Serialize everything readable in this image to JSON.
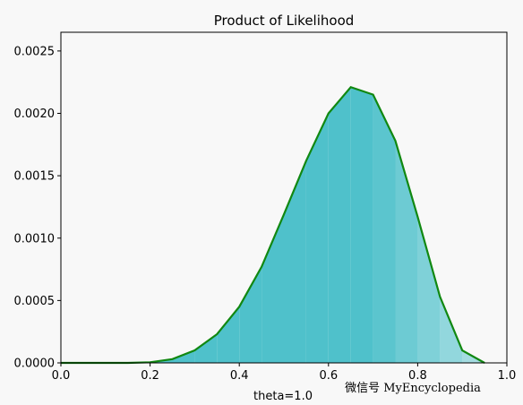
{
  "chart_data": {
    "type": "area",
    "title": "Product of Likelihood",
    "xlabel": "",
    "ylabel": "",
    "xlim": [
      0.0,
      1.0
    ],
    "ylim": [
      0.0,
      0.00265
    ],
    "x_ticks": [
      0.0,
      0.2,
      0.4,
      0.6,
      0.8,
      1.0
    ],
    "x_tick_labels": [
      "0.0",
      "0.2",
      "0.4",
      "0.6",
      "0.8",
      "1.0"
    ],
    "y_ticks": [
      0.0,
      0.0005,
      0.001,
      0.0015,
      0.002,
      0.0025
    ],
    "y_tick_labels": [
      "0.0000",
      "0.0005",
      "0.0010",
      "0.0015",
      "0.0020",
      "0.0025"
    ],
    "grid": false,
    "line_color": "#118811",
    "fill_color": "#4fc1cb",
    "series": [
      {
        "x": [
          0.0,
          0.05,
          0.1,
          0.15,
          0.2,
          0.25,
          0.3,
          0.35,
          0.4,
          0.45,
          0.5,
          0.55,
          0.6,
          0.65,
          0.7,
          0.75,
          0.8,
          0.85,
          0.9,
          0.95
        ],
        "y": [
          0.0,
          0.0,
          0.0,
          0.0,
          5e-06,
          3e-05,
          0.0001,
          0.00023,
          0.00045,
          0.00077,
          0.00119,
          0.00162,
          0.002,
          0.00221,
          0.00215,
          0.00178,
          0.00117,
          0.00053,
          0.0001,
          0.0
        ]
      }
    ]
  },
  "footer": {
    "left_text": "theta=1.0",
    "right_text": "微信号 MyEncyclopedia"
  }
}
